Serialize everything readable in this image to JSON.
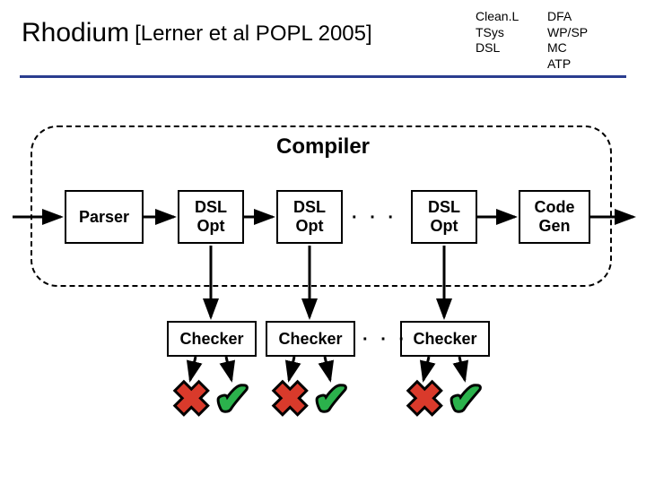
{
  "title": {
    "main": "Rhodium",
    "sub": "[Lerner et al POPL 2005]"
  },
  "tags": {
    "col1": [
      "Clean.L",
      "TSys",
      "DSL"
    ],
    "col2": [
      "DFA",
      "WP/SP",
      "MC",
      "ATP"
    ]
  },
  "diagram": {
    "type": "flowchart",
    "container_label": "Compiler",
    "colors": {
      "rule": "#2a3d8f",
      "node_border": "#000000",
      "node_fill": "#ffffff",
      "arrow": "#000000",
      "cross": "#d93a2b",
      "check": "#2bb24c",
      "dash": "#000000"
    },
    "nodes": {
      "parser": {
        "label": "Parser"
      },
      "dsl1": {
        "label": "DSL\nOpt"
      },
      "dsl2": {
        "label": "DSL\nOpt"
      },
      "dsl3": {
        "label": "DSL\nOpt"
      },
      "codegen": {
        "label": "Code\nGen"
      },
      "chk1": {
        "label": "Checker"
      },
      "chk2": {
        "label": "Checker"
      },
      "chk3": {
        "label": "Checker"
      }
    },
    "ellipsis": "· · ·",
    "marks": {
      "cross": "✖",
      "check": "✔"
    }
  }
}
